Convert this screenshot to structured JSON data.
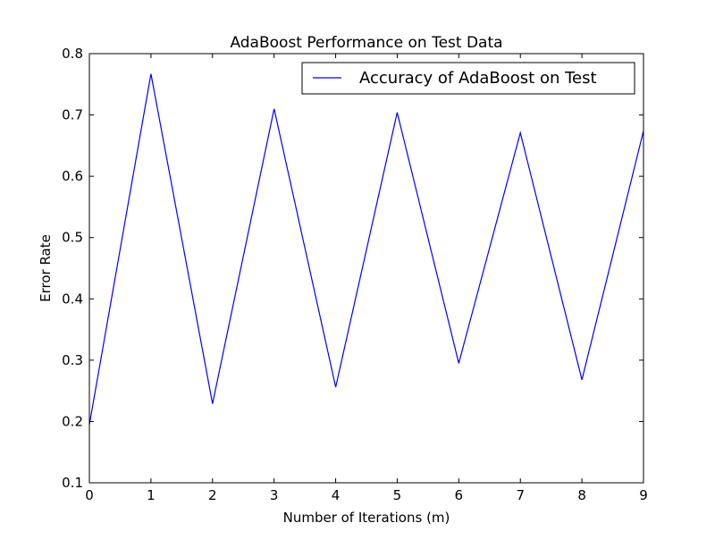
{
  "chart_data": {
    "type": "line",
    "title": "AdaBoost Performance on Test Data",
    "xlabel": "Number of Iterations (m)",
    "ylabel": "Error Rate",
    "xlim": [
      0,
      9
    ],
    "ylim": [
      0.1,
      0.8
    ],
    "xticks": [
      "0",
      "1",
      "2",
      "3",
      "4",
      "5",
      "6",
      "7",
      "8",
      "9"
    ],
    "yticks": [
      "0.1",
      "0.2",
      "0.3",
      "0.4",
      "0.5",
      "0.6",
      "0.7",
      "0.8"
    ],
    "grid": false,
    "legend_position": "top-right",
    "series": [
      {
        "name": "Accuracy of AdaBoost on Test",
        "color": "#0000ff",
        "x": [
          0,
          1,
          2,
          3,
          4,
          5,
          6,
          7,
          8,
          9
        ],
        "y": [
          0.195,
          0.767,
          0.229,
          0.71,
          0.256,
          0.704,
          0.295,
          0.671,
          0.268,
          0.674
        ]
      }
    ]
  }
}
